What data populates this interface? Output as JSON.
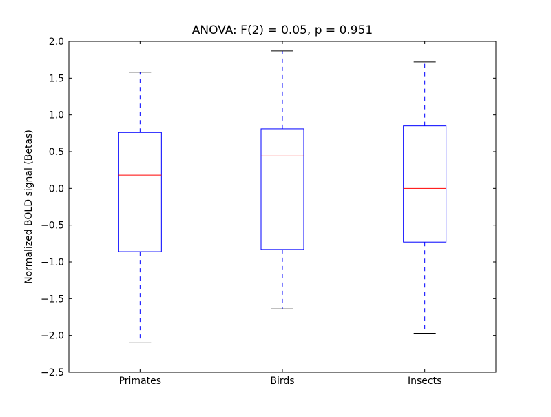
{
  "chart_data": {
    "type": "boxplot",
    "title": "ANOVA: F(2) = 0.05, p = 0.951",
    "xlabel": "",
    "ylabel": "Normalized BOLD signal (Betas)",
    "ylim": [
      -2.5,
      2.0
    ],
    "yticks": [
      "2.0",
      "1.5",
      "1.0",
      "0.5",
      "0.0",
      "−0.5",
      "−1.0",
      "−1.5",
      "−2.0",
      "−2.5"
    ],
    "ytick_values": [
      2.0,
      1.5,
      1.0,
      0.5,
      0.0,
      -0.5,
      -1.0,
      -1.5,
      -2.0,
      -2.5
    ],
    "categories": [
      "Primates",
      "Birds",
      "Insects"
    ],
    "boxes": [
      {
        "whisker_low": -2.1,
        "q1": -0.86,
        "median": 0.18,
        "q3": 0.76,
        "whisker_high": 1.58
      },
      {
        "whisker_low": -1.64,
        "q1": -0.83,
        "median": 0.44,
        "q3": 0.81,
        "whisker_high": 1.87
      },
      {
        "whisker_low": -1.97,
        "q1": -0.73,
        "median": 0.0,
        "q3": 0.85,
        "whisker_high": 1.72
      }
    ],
    "grid": false,
    "colors": {
      "box": "#0000ff",
      "median": "#ff0000",
      "caps": "#000000"
    }
  }
}
